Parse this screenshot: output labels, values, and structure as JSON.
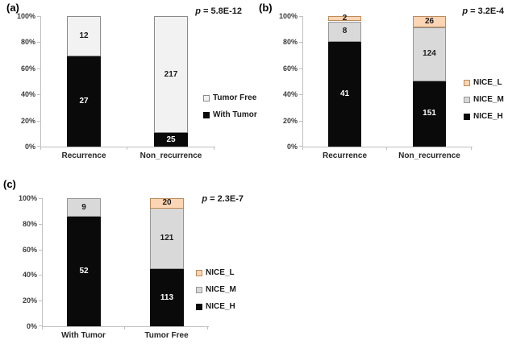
{
  "figure": {
    "background": "#ffffff"
  },
  "palette": {
    "with_tumor": {
      "fill": "#0a0a0a",
      "border": "#0a0a0a",
      "text": "#ffffff"
    },
    "tumor_free": {
      "fill": "#f2f2f2",
      "border": "#8a8a8a",
      "text": "#1a1a1a"
    },
    "nice_h": {
      "fill": "#0a0a0a",
      "border": "#0a0a0a",
      "text": "#ffffff"
    },
    "nice_m": {
      "fill": "#d9d9d9",
      "border": "#969696",
      "text": "#1a1a1a"
    },
    "nice_l": {
      "fill": "#fcd5b4",
      "border": "#bd8b58",
      "text": "#1a1a1a"
    }
  },
  "chart_data": [
    {
      "type": "bar",
      "stacked": true,
      "percent_axis": true,
      "panel_label": "(a)",
      "p_symbol": "p",
      "p_text": "= 5.8E-12",
      "categories": [
        "Recurrence",
        "Non_recurrence"
      ],
      "series": [
        {
          "name": "With Tumor",
          "palette": "with_tumor",
          "values": [
            27,
            25
          ]
        },
        {
          "name": "Tumor Free",
          "palette": "tumor_free",
          "values": [
            12,
            217
          ]
        }
      ],
      "legend": [
        {
          "label": "Tumor Free",
          "palette": "tumor_free"
        },
        {
          "label": "With Tumor",
          "palette": "with_tumor"
        }
      ],
      "y_ticks": [
        "0%",
        "20%",
        "40%",
        "60%",
        "80%",
        "100%"
      ],
      "ylim": [
        0,
        100
      ]
    },
    {
      "type": "bar",
      "stacked": true,
      "percent_axis": true,
      "panel_label": "(b)",
      "p_symbol": "p",
      "p_text": "= 3.2E-4",
      "categories": [
        "Recurrence",
        "Non_recurrence"
      ],
      "series": [
        {
          "name": "NICE_H",
          "palette": "nice_h",
          "values": [
            41,
            151
          ]
        },
        {
          "name": "NICE_M",
          "palette": "nice_m",
          "values": [
            8,
            124
          ]
        },
        {
          "name": "NICE_L",
          "palette": "nice_l",
          "values": [
            2,
            26
          ]
        }
      ],
      "legend": [
        {
          "label": "NICE_L",
          "palette": "nice_l"
        },
        {
          "label": "NICE_M",
          "palette": "nice_m"
        },
        {
          "label": "NICE_H",
          "palette": "nice_h"
        }
      ],
      "y_ticks": [
        "0%",
        "20%",
        "40%",
        "60%",
        "80%",
        "100%"
      ],
      "ylim": [
        0,
        100
      ]
    },
    {
      "type": "bar",
      "stacked": true,
      "percent_axis": true,
      "panel_label": "(c)",
      "p_symbol": "p",
      "p_text": "= 2.3E-7",
      "categories": [
        "With Tumor",
        "Tumor Free"
      ],
      "series": [
        {
          "name": "NICE_H",
          "palette": "nice_h",
          "values": [
            52,
            113
          ]
        },
        {
          "name": "NICE_M",
          "palette": "nice_m",
          "values": [
            9,
            121
          ]
        },
        {
          "name": "NICE_L",
          "palette": "nice_l",
          "values": [
            0,
            20
          ]
        }
      ],
      "legend": [
        {
          "label": "NICE_L",
          "palette": "nice_l"
        },
        {
          "label": "NICE_M",
          "palette": "nice_m"
        },
        {
          "label": "NICE_H",
          "palette": "nice_h"
        }
      ],
      "y_ticks": [
        "0%",
        "20%",
        "40%",
        "60%",
        "80%",
        "100%"
      ],
      "ylim": [
        0,
        100
      ]
    }
  ]
}
